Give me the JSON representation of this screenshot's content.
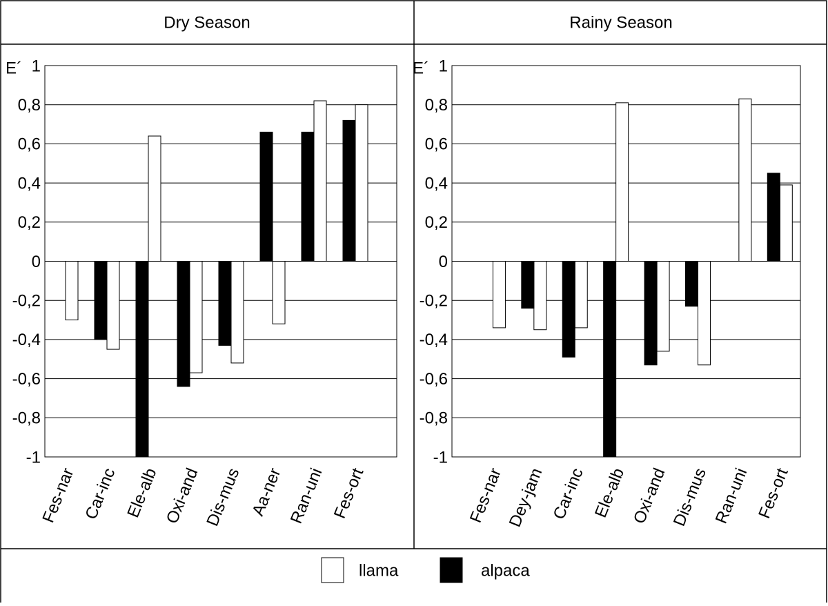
{
  "chart_data": [
    {
      "type": "bar",
      "title": "Dry Season",
      "ylabel": "E´",
      "categories": [
        "Fes-nar",
        "Car-inc",
        "Ele-alb",
        "Oxi-and",
        "Dis-mus",
        "Aa-ner",
        "Ran-uni",
        "Fes-ort"
      ],
      "series": [
        {
          "name": "llama",
          "color": "#ffffff",
          "values": [
            -0.3,
            -0.45,
            0.64,
            -0.57,
            -0.52,
            -0.32,
            0.82,
            0.8
          ]
        },
        {
          "name": "alpaca",
          "color": "#000000",
          "values": [
            null,
            -0.4,
            -1,
            -0.64,
            -0.43,
            0.66,
            0.66,
            0.72
          ]
        }
      ],
      "ylim": [
        -1,
        1
      ],
      "yticks": [
        -1,
        {
          "value": -0.8,
          "label": "-0,8"
        },
        {
          "value": -0.6,
          "label": "-0,6"
        },
        {
          "value": -0.4,
          "label": "-0,4"
        },
        {
          "value": -0.2,
          "label": "-0,2"
        },
        0,
        {
          "value": 0.2,
          "label": "0,2"
        },
        {
          "value": 0.4,
          "label": "0,4"
        },
        {
          "value": 0.6,
          "label": "0,6"
        },
        {
          "value": 0.8,
          "label": "0,8"
        },
        1
      ],
      "grid": true
    },
    {
      "type": "bar",
      "title": "Rainy Season",
      "ylabel": "E´",
      "categories": [
        "Fes-nar",
        "Dey-jam",
        "Car-inc",
        "Ele-alb",
        "Oxi-and",
        "Dis-mus",
        "Ran-uni",
        "Fes-ort"
      ],
      "series": [
        {
          "color": "#ffffff",
          "values": [
            -0.34,
            -0.35,
            -0.34,
            0.81,
            -0.46,
            -0.53,
            0.83,
            0.39
          ]
        },
        {
          "color": "#000000",
          "values": [
            null,
            -0.24,
            -0.49,
            -1,
            -0.53,
            -0.23,
            null,
            0.45
          ]
        }
      ],
      "ylim": [
        -1,
        1
      ],
      "yticks": [
        -1,
        {
          "value": -0.8,
          "label": "-0,8"
        },
        {
          "value": -0.6,
          "label": "-0,6"
        },
        {
          "value": -0.4,
          "label": "-0,4"
        },
        {
          "value": -0.2,
          "label": "-0,2"
        },
        0,
        {
          "value": 0.2,
          "label": "0,2"
        },
        {
          "value": 0.4,
          "label": "0,4"
        },
        {
          "value": 0.6,
          "label": "0,6"
        },
        {
          "value": 0.8,
          "label": "0,8"
        },
        1
      ],
      "grid": true
    }
  ]
}
